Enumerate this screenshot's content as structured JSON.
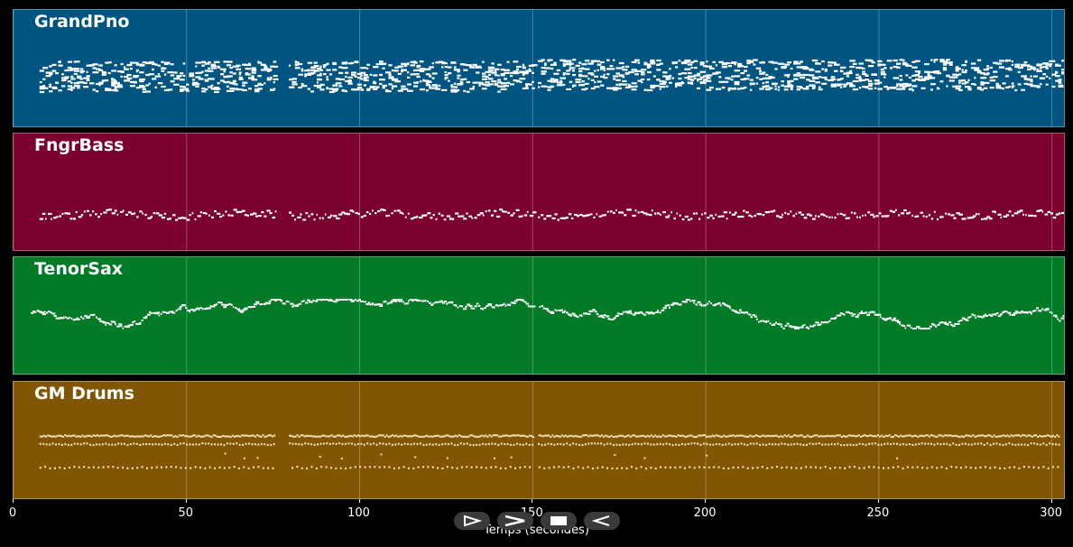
{
  "tracks": [
    {
      "name": "GrandPno",
      "color": "#005580",
      "note_color": "#ffffff"
    },
    {
      "name": "FngrBass",
      "color": "#7c002e",
      "note_color": "#ffffff"
    },
    {
      "name": "TenorSax",
      "color": "#027a26",
      "note_color": "#ffffff"
    },
    {
      "name": "GM Drums",
      "color": "#805503",
      "note_color": "#f0e0b0"
    }
  ],
  "x_axis": {
    "label": "Temps (secondes)",
    "range": [
      0,
      304
    ],
    "ticks": [
      0,
      50,
      100,
      150,
      200,
      250,
      300
    ]
  },
  "controls": [
    {
      "name": "play-outline-icon"
    },
    {
      "name": "play-icon"
    },
    {
      "name": "stop-icon"
    },
    {
      "name": "rewind-icon"
    }
  ]
}
